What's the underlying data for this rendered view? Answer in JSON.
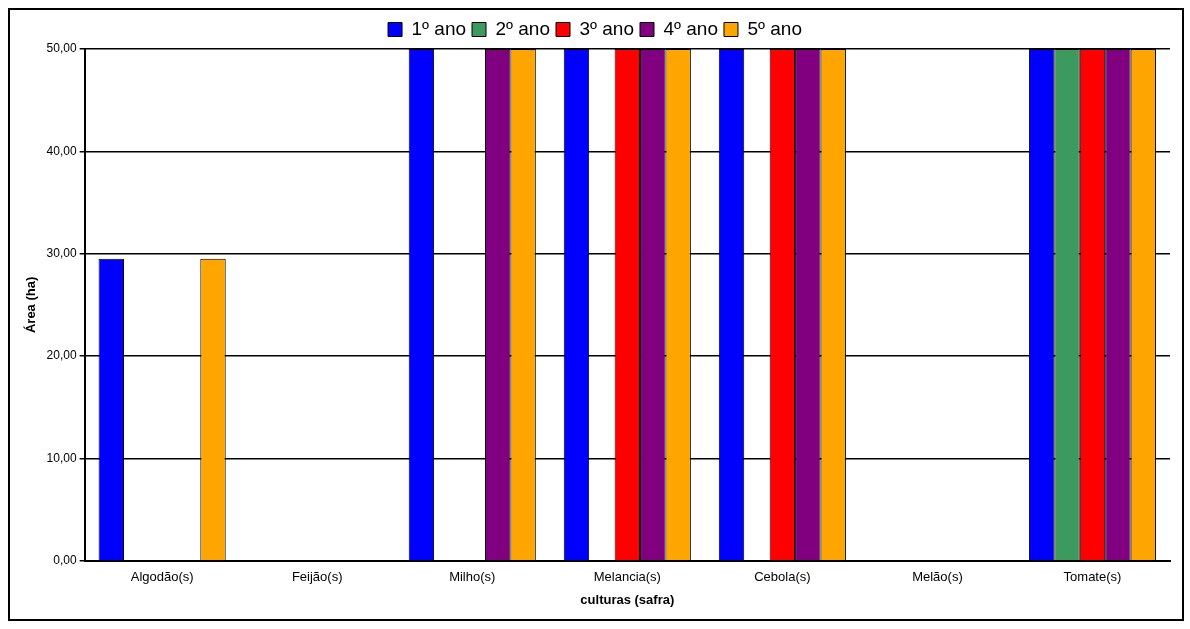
{
  "chart_data": {
    "type": "bar",
    "xlabel": "culturas (safra)",
    "ylabel": "Área (ha)",
    "categories": [
      "Algodão(s)",
      "Feijão(s)",
      "Milho(s)",
      "Melancia(s)",
      "Cebola(s)",
      "Melão(s)",
      "Tomate(s)"
    ],
    "series": [
      {
        "name": "1º ano",
        "color": "#0000ff",
        "values": [
          29.5,
          null,
          50,
          50,
          50,
          null,
          50
        ]
      },
      {
        "name": "2º ano",
        "color": "#3c9a5f",
        "values": [
          null,
          null,
          null,
          null,
          null,
          null,
          50
        ]
      },
      {
        "name": "3º ano",
        "color": "#ff0000",
        "values": [
          null,
          null,
          null,
          50,
          50,
          null,
          50
        ]
      },
      {
        "name": "4º ano",
        "color": "#800080",
        "values": [
          null,
          null,
          50,
          50,
          50,
          null,
          50
        ]
      },
      {
        "name": "5º ano",
        "color": "#ffa500",
        "values": [
          29.5,
          null,
          50,
          50,
          50,
          null,
          50
        ]
      }
    ],
    "ylim": [
      0,
      50
    ],
    "yticks": [
      {
        "value": 0,
        "label": "0,00"
      },
      {
        "value": 10,
        "label": "10,00"
      },
      {
        "value": 20,
        "label": "20,00"
      },
      {
        "value": 30,
        "label": "30,00"
      },
      {
        "value": 40,
        "label": "40,00"
      },
      {
        "value": 50,
        "label": "50,00"
      }
    ],
    "grid": "y",
    "legend": "top"
  }
}
